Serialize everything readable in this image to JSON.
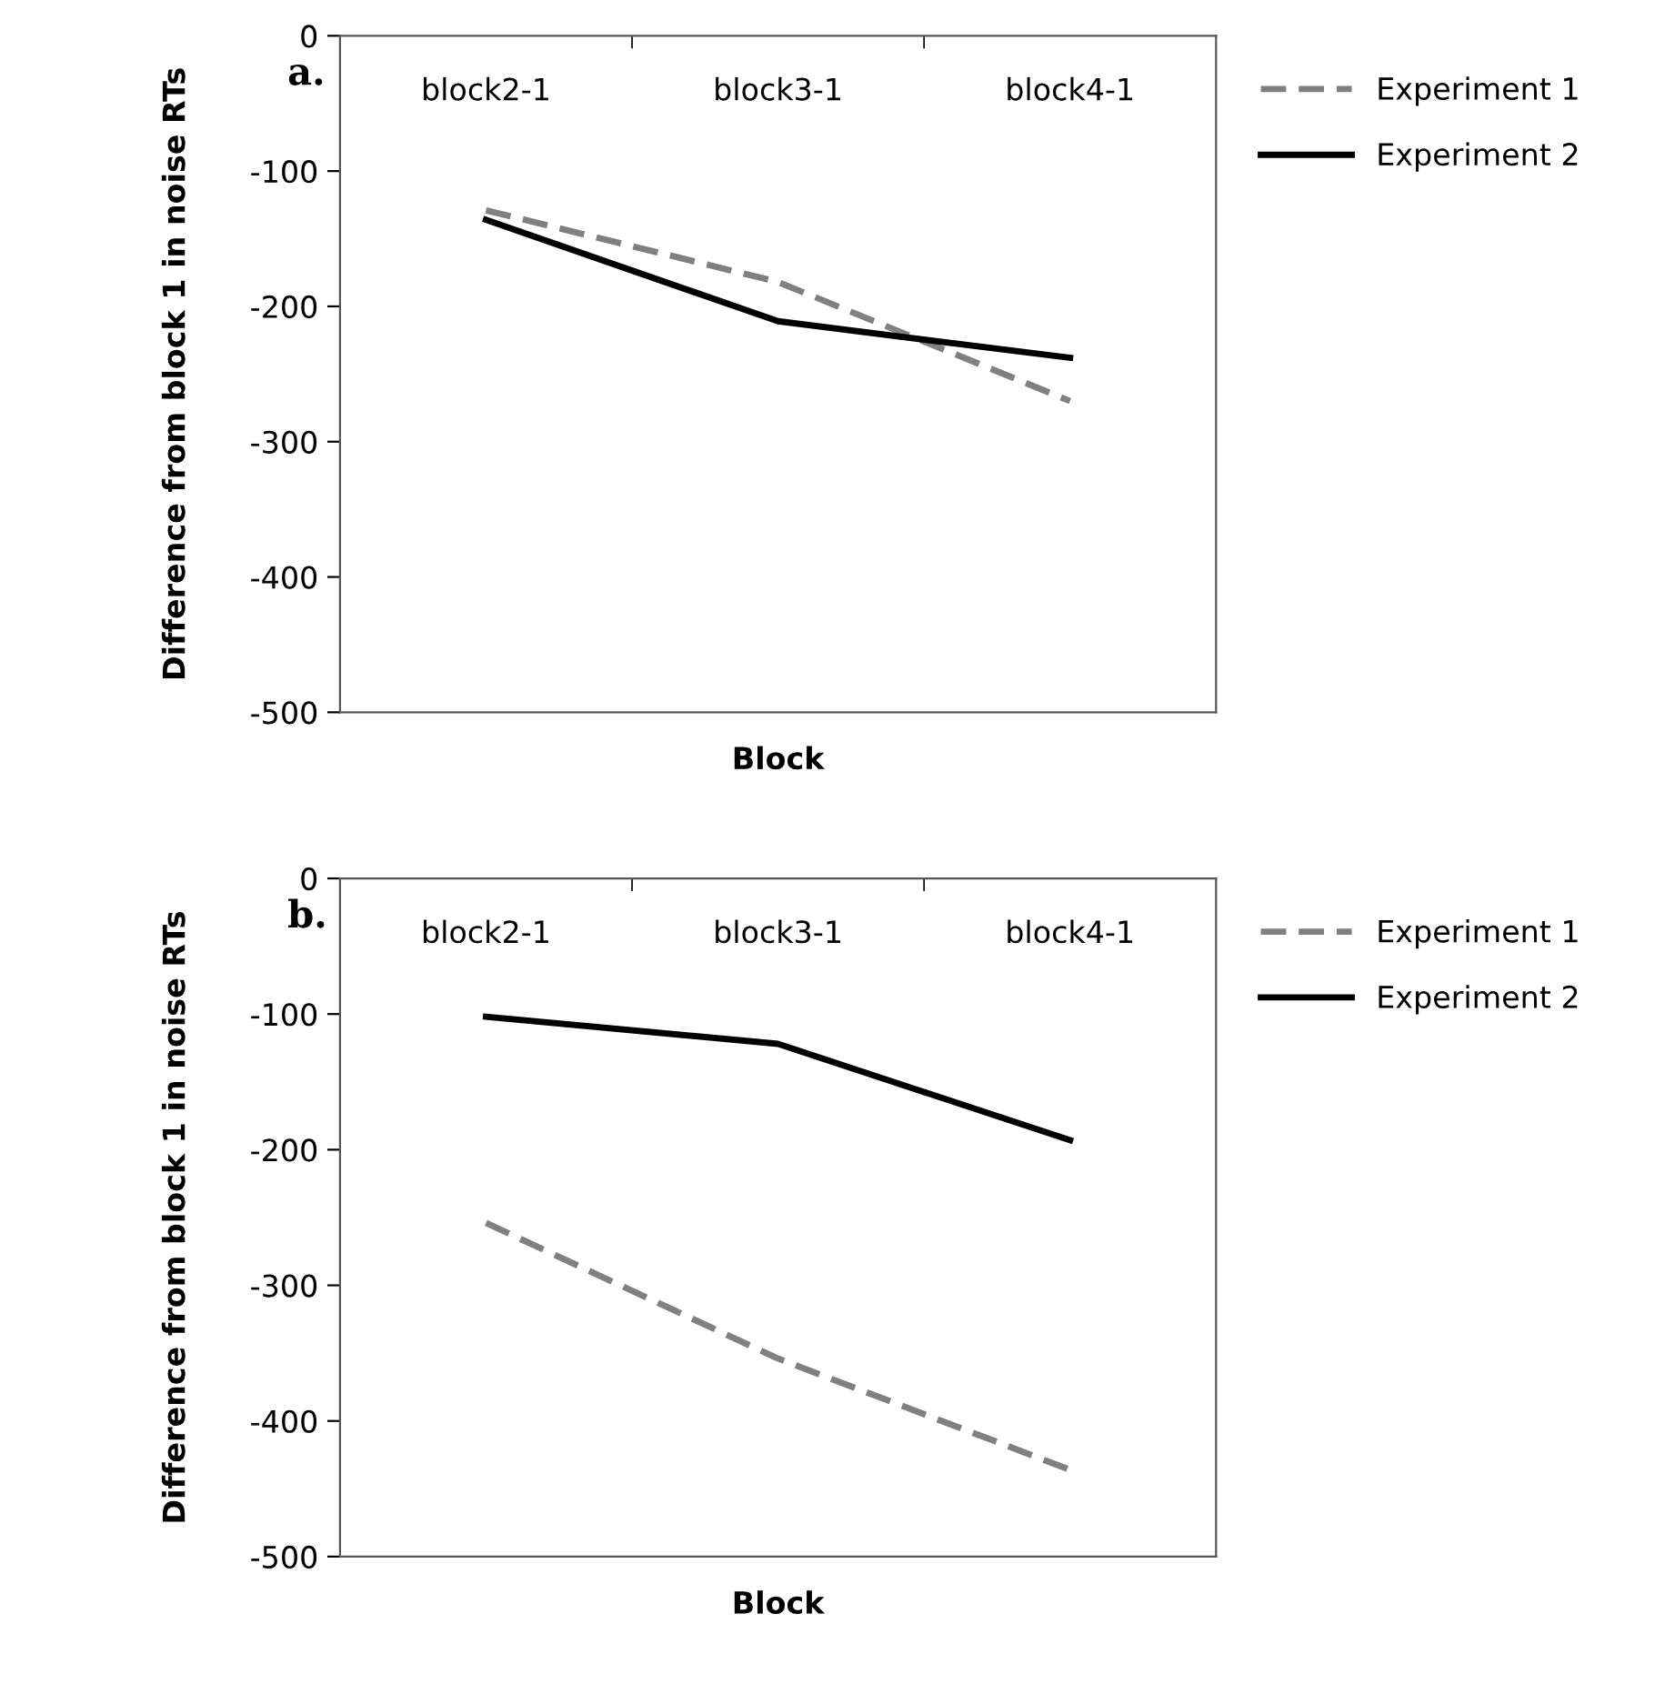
{
  "chart_data": [
    {
      "type": "line",
      "categories": [
        "block2-1",
        "block3-1",
        "block4-1"
      ],
      "xlabel": "Block",
      "ylabel": "Difference from block 1 in noise RTs",
      "annotations": [
        "a."
      ],
      "ylim": [
        -500,
        0
      ],
      "yticks": [
        0,
        -100,
        -200,
        -300,
        -400,
        -500
      ],
      "legend": "right",
      "grid": false,
      "series": [
        {
          "name": "Experiment 1",
          "color": "#808080",
          "line_style": "dashed",
          "values": [
            -129,
            -182,
            -270
          ]
        },
        {
          "name": "Experiment 2",
          "color": "#000000",
          "line_style": "solid",
          "values": [
            -136,
            -211,
            -238
          ]
        }
      ]
    },
    {
      "type": "line",
      "categories": [
        "block2-1",
        "block3-1",
        "block4-1"
      ],
      "xlabel": "Block",
      "ylabel": "Difference from block 1 in noise RTs",
      "annotations": [
        "b."
      ],
      "ylim": [
        -500,
        0
      ],
      "yticks": [
        0,
        -100,
        -200,
        -300,
        -400,
        -500
      ],
      "legend": "right",
      "grid": false,
      "series": [
        {
          "name": "Experiment 1",
          "color": "#808080",
          "line_style": "dashed",
          "values": [
            -254,
            -354,
            -436
          ]
        },
        {
          "name": "Experiment 2",
          "color": "#000000",
          "line_style": "solid",
          "values": [
            -102,
            -122,
            -193
          ]
        }
      ]
    }
  ]
}
